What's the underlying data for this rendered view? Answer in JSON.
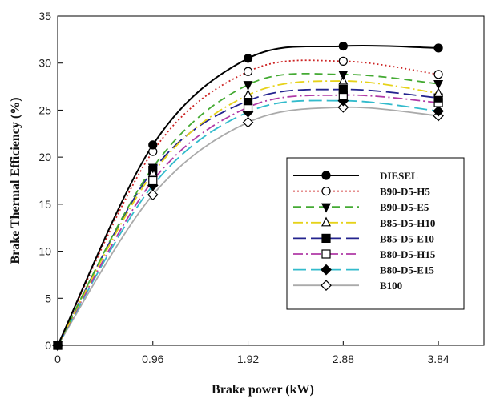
{
  "chart_data": {
    "type": "line",
    "title": "",
    "xlabel": "Brake power (kW)",
    "ylabel": "Brake Thermal Efficiency (%)",
    "x": [
      0,
      0.96,
      1.92,
      2.88,
      3.84
    ],
    "x_tick_labels": [
      "0",
      "0.96",
      "1.92",
      "2.88",
      "3.84"
    ],
    "xlim": [
      0,
      4.3
    ],
    "ylim": [
      0,
      35
    ],
    "y_ticks": [
      0,
      5,
      10,
      15,
      20,
      25,
      30,
      35
    ],
    "y_tick_labels": [
      "0",
      "5",
      "10",
      "15",
      "20",
      "25",
      "30",
      "35"
    ],
    "grid": false,
    "legend_position": "center-right",
    "series": [
      {
        "name": "DIESEL",
        "values": [
          0,
          21.3,
          30.5,
          31.8,
          31.6
        ],
        "color": "#000000",
        "dash": "solid",
        "marker": "circle-filled"
      },
      {
        "name": "B90-D5-H5",
        "values": [
          0,
          20.6,
          29.1,
          30.2,
          28.8
        ],
        "color": "#cc2222",
        "dash": "dotted",
        "marker": "circle-open"
      },
      {
        "name": "B90-D5-E5",
        "values": [
          0,
          18.9,
          27.7,
          28.8,
          27.8
        ],
        "color": "#44aa33",
        "dash": "dashed",
        "marker": "triangle-down-filled"
      },
      {
        "name": "B85-D5-H10",
        "values": [
          0,
          18.3,
          26.6,
          28.1,
          26.8
        ],
        "color": "#e6d21a",
        "dash": "dashdot",
        "marker": "triangle-up-open"
      },
      {
        "name": "B85-D5-E10",
        "values": [
          0,
          18.6,
          26.0,
          27.2,
          26.3
        ],
        "color": "#23238e",
        "dash": "longdash",
        "marker": "square-filled"
      },
      {
        "name": "B80-D5-H15",
        "values": [
          0,
          17.5,
          25.3,
          26.6,
          25.8
        ],
        "color": "#b03aa6",
        "dash": "dashdot",
        "marker": "square-open"
      },
      {
        "name": "B80-D5-E15",
        "values": [
          0,
          17.0,
          24.8,
          26.0,
          24.9
        ],
        "color": "#33bbcc",
        "dash": "longdash",
        "marker": "diamond-filled"
      },
      {
        "name": "B100",
        "values": [
          0,
          16.0,
          23.7,
          25.3,
          24.4
        ],
        "color": "#aaaaaa",
        "dash": "solid",
        "marker": "diamond-open"
      }
    ]
  }
}
